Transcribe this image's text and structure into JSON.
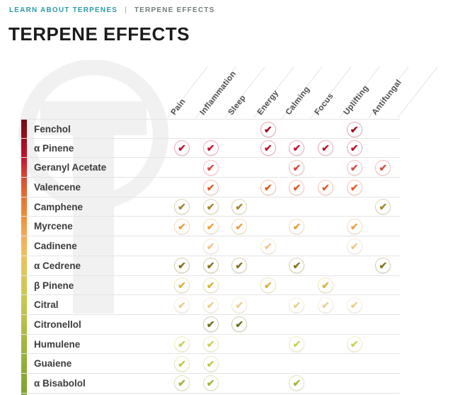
{
  "breadcrumb": {
    "link": "LEARN ABOUT TERPENES",
    "separator": "|",
    "current": "TERPENE EFFECTS"
  },
  "title": "TERPENE EFFECTS",
  "watermark": "T-logo",
  "accent_color": "#2b9ba6",
  "table": {
    "check_glyph": "✔",
    "columns": [
      "Pain",
      "Inflammation",
      "Sleep",
      "Energy",
      "Calming",
      "Focus",
      "Uplifting",
      "Antifungal"
    ],
    "rows": [
      {
        "name": "Fenchol",
        "color": "#9b0f1f",
        "effects": [
          0,
          0,
          0,
          1,
          0,
          0,
          1,
          0
        ]
      },
      {
        "name": "α Pinene",
        "color": "#c11330",
        "effects": [
          1,
          1,
          0,
          1,
          1,
          1,
          1,
          0
        ]
      },
      {
        "name": "Geranyl Acetate",
        "color": "#d84b43",
        "effects": [
          0,
          1,
          0,
          0,
          1,
          0,
          1,
          1
        ]
      },
      {
        "name": "Valencene",
        "color": "#e05a2b",
        "effects": [
          0,
          1,
          0,
          1,
          1,
          1,
          1,
          0
        ]
      },
      {
        "name": "Camphene",
        "color": "#a1862c",
        "effects": [
          1,
          1,
          1,
          0,
          0,
          0,
          0,
          1
        ]
      },
      {
        "name": "Myrcene",
        "color": "#ec9f45",
        "effects": [
          1,
          1,
          1,
          0,
          1,
          0,
          1,
          0
        ]
      },
      {
        "name": "Cadinene",
        "color": "#f3c38b",
        "effects": [
          0,
          1,
          0,
          1,
          0,
          0,
          1,
          0
        ]
      },
      {
        "name": "α Cedrene",
        "color": "#837320",
        "effects": [
          1,
          1,
          1,
          0,
          1,
          0,
          0,
          1
        ]
      },
      {
        "name": "β Pinene",
        "color": "#d4b43d",
        "effects": [
          1,
          1,
          0,
          1,
          0,
          1,
          0,
          0
        ]
      },
      {
        "name": "Citral",
        "color": "#e7d08d",
        "effects": [
          1,
          1,
          1,
          0,
          1,
          1,
          1,
          0
        ]
      },
      {
        "name": "Citronellol",
        "color": "#6c701b",
        "effects": [
          0,
          1,
          1,
          0,
          0,
          0,
          0,
          0
        ]
      },
      {
        "name": "Humulene",
        "color": "#ccd156",
        "effects": [
          1,
          1,
          0,
          0,
          1,
          0,
          1,
          0
        ]
      },
      {
        "name": "Guaiene",
        "color": "#c0c84f",
        "effects": [
          1,
          1,
          0,
          0,
          0,
          0,
          0,
          0
        ]
      },
      {
        "name": "α Bisabolol",
        "color": "#a2b33c",
        "effects": [
          1,
          1,
          0,
          0,
          1,
          0,
          0,
          0
        ]
      },
      {
        "name": "",
        "color": "#86a331",
        "effects": [
          0,
          0,
          0,
          0,
          1,
          0,
          0,
          0
        ]
      }
    ]
  }
}
